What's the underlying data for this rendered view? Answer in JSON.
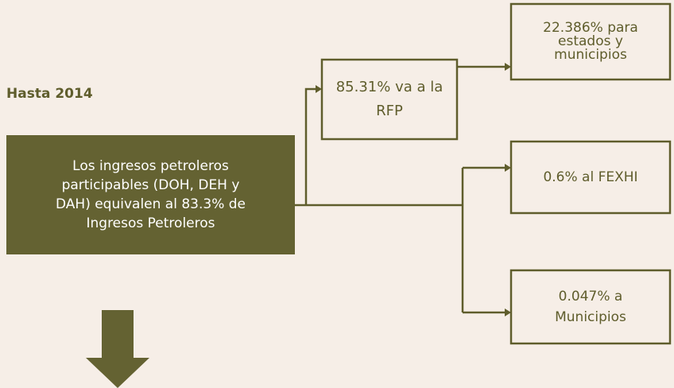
{
  "title": "Hasta 2014",
  "nodes": [
    {
      "label": [
        "Los ingresos petroleros",
        "participables (DOH, DEH y",
        "DAH) equivalen al 83.3% de",
        "Ingresos Petroleros"
      ]
    },
    {
      "label": [
        "85.31% va a la",
        "RFP"
      ]
    },
    {
      "label": [
        "22.386% para",
        "estados y",
        "municipios"
      ]
    },
    {
      "label": [
        "0.6% al FEXHI"
      ]
    },
    {
      "label": [
        "0.047% a",
        "Municipios"
      ]
    }
  ]
}
